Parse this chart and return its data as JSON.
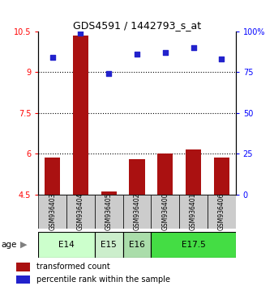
{
  "title": "GDS4591 / 1442793_s_at",
  "samples": [
    "GSM936403",
    "GSM936404",
    "GSM936405",
    "GSM936402",
    "GSM936400",
    "GSM936401",
    "GSM936406"
  ],
  "transformed_counts": [
    5.85,
    10.35,
    4.6,
    5.8,
    6.0,
    6.15,
    5.85
  ],
  "percentile_ranks": [
    84,
    99,
    74,
    86,
    87,
    90,
    83
  ],
  "bar_color": "#aa1111",
  "dot_color": "#2222cc",
  "ylim_left": [
    4.5,
    10.5
  ],
  "ylim_right": [
    0,
    100
  ],
  "yticks_left": [
    4.5,
    6.0,
    7.5,
    9.0,
    10.5
  ],
  "yticks_right": [
    0,
    25,
    50,
    75,
    100
  ],
  "ytick_labels_left": [
    "4.5",
    "6",
    "7.5",
    "9",
    "10.5"
  ],
  "ytick_labels_right": [
    "0",
    "25",
    "50",
    "75",
    "100%"
  ],
  "hgrid_values": [
    9.0,
    7.5,
    6.0
  ],
  "age_label": "age",
  "age_groups": [
    {
      "label": "E14",
      "indices": [
        0,
        1
      ],
      "color": "#ccffcc"
    },
    {
      "label": "E15",
      "indices": [
        2
      ],
      "color": "#cceecc"
    },
    {
      "label": "E16",
      "indices": [
        3
      ],
      "color": "#aaddaa"
    },
    {
      "label": "E17.5",
      "indices": [
        4,
        5,
        6
      ],
      "color": "#44dd44"
    }
  ],
  "sample_bg_color": "#cccccc",
  "legend_bar_label": "transformed count",
  "legend_dot_label": "percentile rank within the sample",
  "background_color": "#ffffff"
}
